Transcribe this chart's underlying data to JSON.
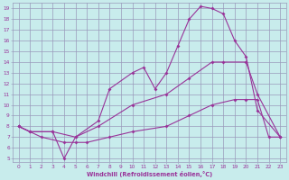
{
  "xlabel": "Windchill (Refroidissement éolien,°C)",
  "ylabel": "",
  "bg_color": "#c8ecec",
  "grid_color": "#9999bb",
  "line_color": "#993399",
  "xmin": 0,
  "xmax": 23,
  "ymin": 5,
  "ymax": 19,
  "line1_x": [
    0,
    1,
    3,
    4,
    5,
    7,
    8,
    10,
    11,
    12,
    13,
    14,
    15,
    16,
    17,
    18,
    19,
    20,
    21,
    23
  ],
  "line1_y": [
    8,
    7.5,
    7.5,
    5,
    7,
    8.5,
    11.5,
    13,
    13.5,
    11.5,
    13,
    15.5,
    18,
    19.2,
    19,
    18.5,
    16,
    14.5,
    9.5,
    7
  ],
  "line2_x": [
    0,
    1,
    3,
    5,
    7,
    10,
    13,
    15,
    17,
    18,
    20,
    21,
    23
  ],
  "line2_y": [
    8,
    7.5,
    7.5,
    7,
    8,
    10,
    11,
    12.5,
    14,
    14,
    14,
    11,
    7
  ],
  "line3_x": [
    0,
    2,
    4,
    5,
    6,
    8,
    10,
    13,
    15,
    17,
    19,
    20,
    21,
    22,
    23
  ],
  "line3_y": [
    8,
    7,
    6.5,
    6.5,
    6.5,
    7,
    7.5,
    8,
    9,
    10,
    10.5,
    10.5,
    10.5,
    7,
    7
  ]
}
